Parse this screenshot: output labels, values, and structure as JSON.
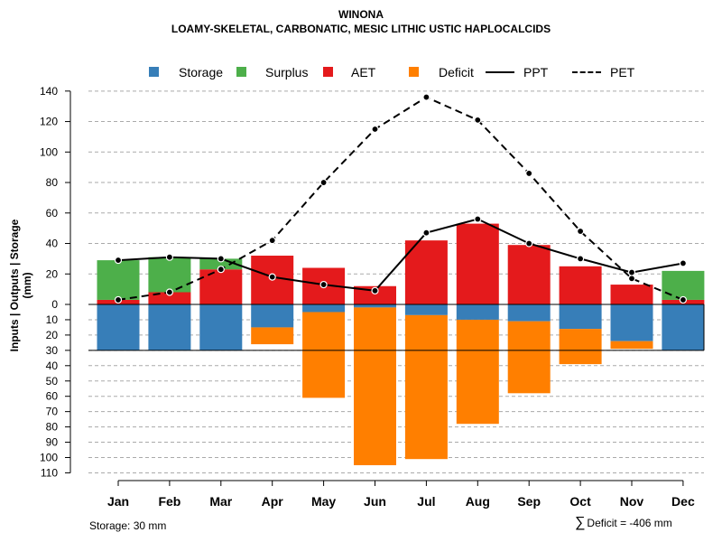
{
  "chart_data": {
    "type": "bar",
    "title": "WINONA",
    "subtitle": "LOAMY-SKELETAL, CARBONATIC, MESIC LITHIC USTIC HAPLOCALCIDS",
    "ylabel": "Inputs | Outputs | Storage    (mm)",
    "xlabel": "",
    "categories": [
      "Jan",
      "Feb",
      "Mar",
      "Apr",
      "May",
      "Jun",
      "Jul",
      "Aug",
      "Sep",
      "Oct",
      "Nov",
      "Dec"
    ],
    "ylim": [
      -110,
      140
    ],
    "yticks_positive": [
      "140",
      "120",
      "100",
      "80",
      "60",
      "40",
      "20",
      "0"
    ],
    "yticks_negative": [
      "10",
      "20",
      "30",
      "40",
      "50",
      "60",
      "70",
      "80",
      "90",
      "100",
      "110"
    ],
    "grid": true,
    "series": [
      {
        "name": "AET",
        "kind": "bar-up",
        "values": [
          3,
          8,
          23,
          32,
          24,
          12,
          42,
          53,
          39,
          25,
          13,
          3
        ]
      },
      {
        "name": "Surplus",
        "kind": "bar-up-stacked",
        "values": [
          26,
          23,
          7,
          0,
          0,
          0,
          0,
          0,
          0,
          0,
          0,
          19
        ]
      },
      {
        "name": "Storage",
        "kind": "bar-down",
        "values": [
          30,
          30,
          30,
          15,
          5,
          2,
          7,
          10,
          11,
          16,
          24,
          30
        ]
      },
      {
        "name": "Deficit",
        "kind": "bar-down-stacked",
        "values": [
          0,
          0,
          0,
          11,
          56,
          103,
          94,
          68,
          47,
          23,
          5,
          0
        ]
      },
      {
        "name": "PPT",
        "kind": "line-solid",
        "values": [
          29,
          31,
          30,
          18,
          13,
          9,
          47,
          56,
          40,
          30,
          21,
          27
        ]
      },
      {
        "name": "PET",
        "kind": "line-dashed",
        "values": [
          3,
          8,
          23,
          42,
          80,
          115,
          136,
          121,
          86,
          48,
          17,
          3
        ]
      }
    ],
    "storage_capacity": 30,
    "legend": [
      "Storage",
      "Surplus",
      "AET",
      "Deficit",
      "PPT",
      "PET"
    ],
    "legend_position": "top-center"
  },
  "colors": {
    "storage": "#377EB8",
    "surplus": "#4DAF4A",
    "aet": "#E41A1C",
    "deficit": "#FF7F00",
    "grid": "#aaaaaa"
  },
  "footer": {
    "storage_note": "Storage: 30 mm",
    "deficit_note": "Deficit = -406 mm"
  }
}
